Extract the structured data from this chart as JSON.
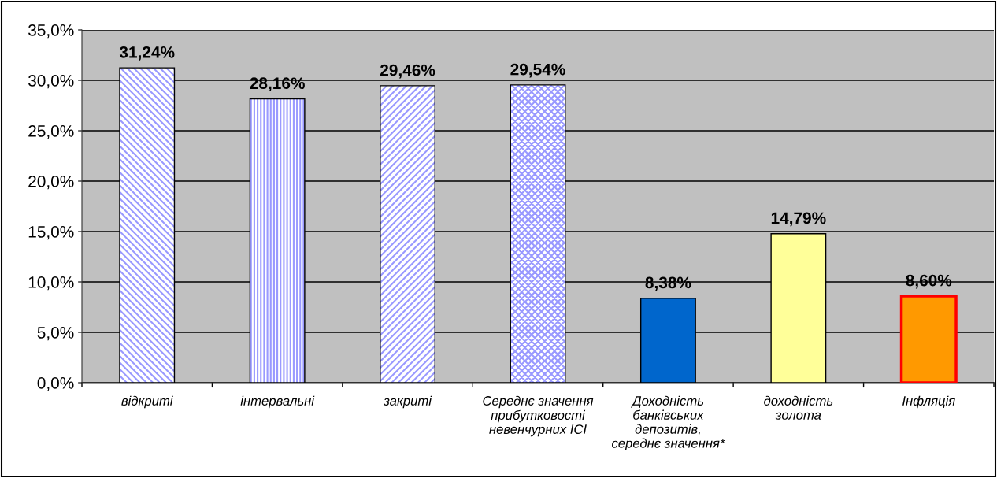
{
  "chart_data": {
    "type": "bar",
    "categories": [
      "відкриті",
      "інтервальні",
      "закриті",
      "Середнє значення\nприбутковості\nневенчурних ІСІ",
      "Доходність\nбанківських\nдепозитів,\nсереднє значення*",
      "доходність\nзолота",
      "Інфляція"
    ],
    "values": [
      31.24,
      28.16,
      29.46,
      29.54,
      8.38,
      14.79,
      8.6
    ],
    "value_labels": [
      "31,24%",
      "28,16%",
      "29,46%",
      "29,54%",
      "8,38%",
      "14,79%",
      "8,60%"
    ],
    "colors": [
      "#9999ff",
      "#9999ff",
      "#9999ff",
      "#9999ff",
      "#0066cc",
      "#ffff99",
      "#ff9900"
    ],
    "ylim": [
      0,
      35
    ],
    "yticks": [
      {
        "value": 0,
        "label": "0,0%"
      },
      {
        "value": 5,
        "label": "5,0%"
      },
      {
        "value": 10,
        "label": "10,0%"
      },
      {
        "value": 15,
        "label": "15,0%"
      },
      {
        "value": 20,
        "label": "20,0%"
      },
      {
        "value": 25,
        "label": "25,0%"
      },
      {
        "value": 30,
        "label": "30,0%"
      },
      {
        "value": 35,
        "label": "35,0%"
      }
    ],
    "grid": "y"
  }
}
